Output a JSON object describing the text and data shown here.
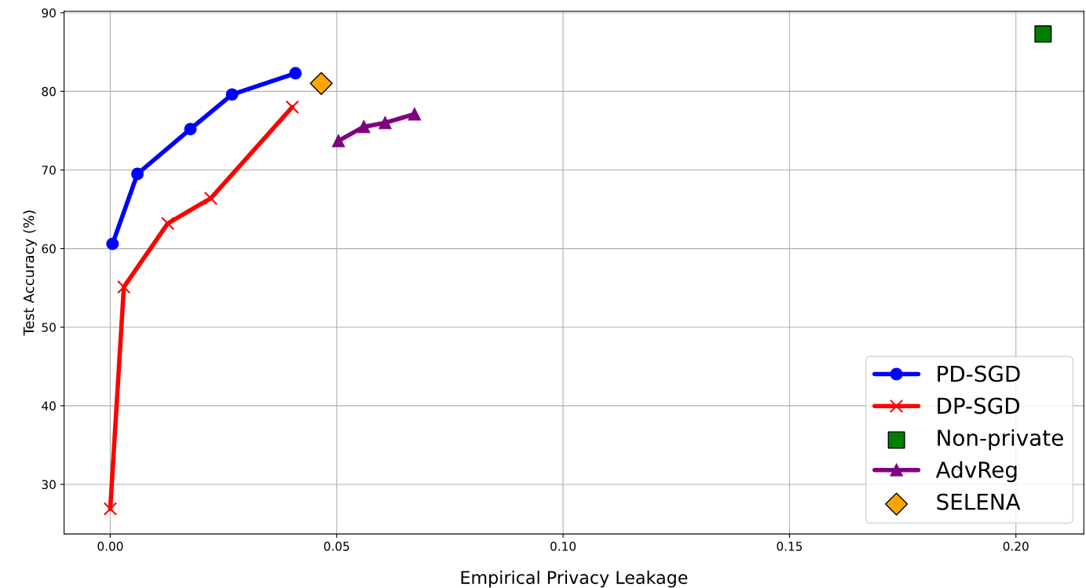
{
  "chart_data": {
    "type": "line",
    "xlabel": "Empirical Privacy Leakage",
    "ylabel": "Test Accuracy (%)",
    "xlim": [
      -0.0102,
      0.215
    ],
    "ylim": [
      23.7,
      90.2
    ],
    "xticks": [
      {
        "value": 0,
        "label": "0.00"
      },
      {
        "value": 0.05,
        "label": "0.05"
      },
      {
        "value": 0.1,
        "label": "0.10"
      },
      {
        "value": 0.15,
        "label": "0.15"
      },
      {
        "value": 0.2,
        "label": "0.20"
      }
    ],
    "yticks": [
      30,
      40,
      50,
      60,
      70,
      80,
      90
    ],
    "grid": true,
    "legend": "bottom right",
    "series": [
      {
        "name": "PD-SGD",
        "marker": "circle",
        "color": "#0000ff",
        "x": [
          0.0005,
          0.006,
          0.0177,
          0.0269,
          0.0409
        ],
        "values": [
          60.6,
          69.5,
          75.2,
          79.6,
          82.3
        ]
      },
      {
        "name": "DP-SGD",
        "marker": "cross",
        "color": "#ff0000",
        "x": [
          0.0,
          0.003,
          0.0127,
          0.0222,
          0.0402
        ],
        "values": [
          26.9,
          55.1,
          63.2,
          66.4,
          78.0
        ]
      },
      {
        "name": "Non-private",
        "type": "scatter",
        "marker": "square",
        "color": "#008000",
        "x": [
          0.206
        ],
        "values": [
          87.3
        ]
      },
      {
        "name": "AdvReg",
        "marker": "triangle",
        "color": "#800080",
        "x": [
          0.0504,
          0.056,
          0.0607,
          0.0672
        ],
        "values": [
          73.7,
          75.5,
          76.0,
          77.1
        ]
      },
      {
        "name": "SELENA",
        "type": "scatter",
        "marker": "diamond",
        "color": "#ffa500",
        "x": [
          0.0466
        ],
        "values": [
          81.0
        ]
      }
    ]
  }
}
